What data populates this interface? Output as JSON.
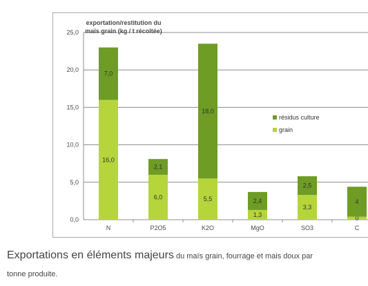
{
  "chart_data": {
    "type": "bar",
    "stacked": true,
    "title": "exportation/restitution du maïs grain (kg / t récoltée)",
    "categories": [
      "N",
      "P2O5",
      "K2O",
      "MgO",
      "SO3",
      "C"
    ],
    "series": [
      {
        "name": "grain",
        "values": [
          16.0,
          6.0,
          5.5,
          1.3,
          3.3,
          0.4
        ],
        "color": "#b5d53a"
      },
      {
        "name": "résidus culture",
        "values": [
          7.0,
          2.1,
          18.0,
          2.4,
          2.5,
          4.0
        ],
        "color": "#6e9c24"
      }
    ],
    "data_labels": {
      "grain": [
        "16,0",
        "6,0",
        "5,5",
        "1,3",
        "3,3",
        "0"
      ],
      "résidus culture": [
        "7,0",
        "2,1",
        "18,0",
        "2,4",
        "2,5",
        "4"
      ]
    },
    "ylim": [
      0,
      25
    ],
    "yticks": [
      "0,0",
      "5,0",
      "10,0",
      "15,0",
      "20,0",
      "25,0"
    ],
    "grid": true,
    "legend": {
      "position": "right",
      "entries": [
        "résidus culture",
        "grain"
      ]
    }
  },
  "caption": {
    "main": "Exportations en éléments majeurs",
    "sub": " du maïs grain, fourrage et mais doux par",
    "line2": "tonne produite."
  }
}
